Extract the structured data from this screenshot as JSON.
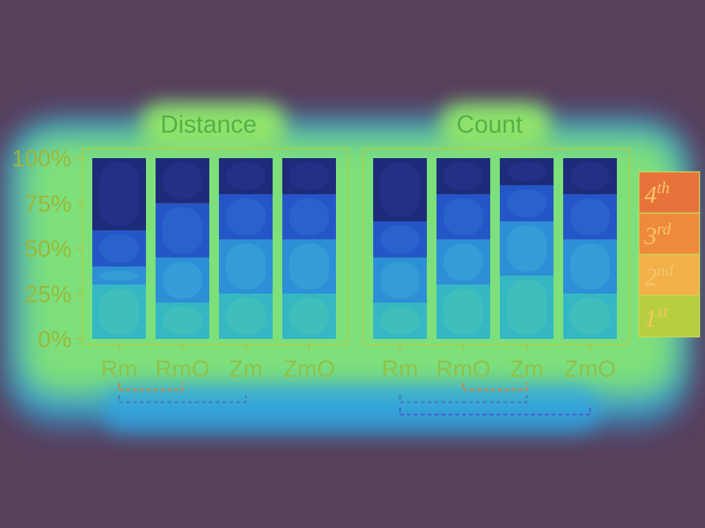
{
  "chart_data": {
    "type": "stacked-bar",
    "overlay": "attention-heatmap",
    "y_ticks": [
      "100%",
      "75%",
      "50%",
      "25%",
      "0%"
    ],
    "ylim": [
      0,
      100
    ],
    "categories": [
      "Rm",
      "RmO",
      "Zm",
      "ZmO"
    ],
    "legend": [
      {
        "base": "4",
        "sup": "th",
        "color": "#e8733a"
      },
      {
        "base": "3",
        "sup": "rd",
        "color": "#ee8a3c"
      },
      {
        "base": "2",
        "sup": "nd",
        "color": "#f3b14a"
      },
      {
        "base": "1",
        "sup": "st",
        "color": "#b7cf3e"
      }
    ],
    "panels": [
      {
        "title": "Distance",
        "stacks": [
          {
            "category": "Rm",
            "values": [
              30,
              10,
              20,
              40
            ]
          },
          {
            "category": "RmO",
            "values": [
              20,
              25,
              30,
              25
            ]
          },
          {
            "category": "Zm",
            "values": [
              25,
              30,
              25,
              20
            ]
          },
          {
            "category": "ZmO",
            "values": [
              25,
              30,
              25,
              20
            ]
          }
        ],
        "brackets": [
          {
            "from": "Rm",
            "to": "RmO",
            "color": "#e07a3a"
          },
          {
            "from": "Rm",
            "to": "Zm",
            "color": "#3f7fb8"
          }
        ]
      },
      {
        "title": "Count",
        "stacks": [
          {
            "category": "Rm",
            "values": [
              20,
              25,
              20,
              35
            ]
          },
          {
            "category": "RmO",
            "values": [
              30,
              25,
              25,
              20
            ]
          },
          {
            "category": "Zm",
            "values": [
              35,
              30,
              20,
              15
            ]
          },
          {
            "category": "ZmO",
            "values": [
              25,
              30,
              25,
              20
            ]
          }
        ],
        "brackets": [
          {
            "from": "RmO",
            "to": "Zm",
            "color": "#e07a3a"
          },
          {
            "from": "Rm",
            "to": "Zm",
            "color": "#3f7fb8"
          },
          {
            "from": "Rm",
            "to": "ZmO",
            "color": "#4a60d0"
          }
        ]
      }
    ]
  }
}
